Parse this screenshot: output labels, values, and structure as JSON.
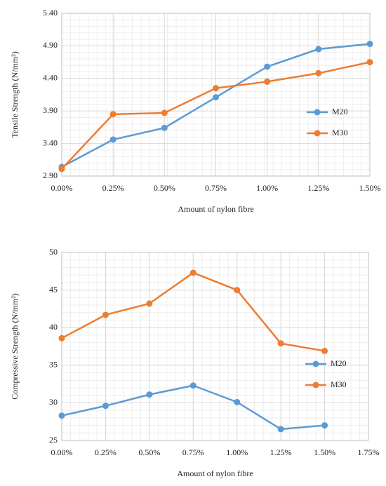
{
  "chart_data": [
    {
      "type": "line",
      "y_label": "Tensile Strength (N/mm²)",
      "x_label": "Amount of nylon fibre",
      "x": [
        0,
        0.25,
        0.5,
        0.75,
        1.0,
        1.25,
        1.5
      ],
      "xlim": [
        0,
        1.5
      ],
      "xticks": [
        {
          "value": 0,
          "label": "0.00%"
        },
        {
          "value": 0.25,
          "label": "0.25%"
        },
        {
          "value": 0.5,
          "label": "0.50%"
        },
        {
          "value": 0.75,
          "label": "0.75%"
        },
        {
          "value": 1.0,
          "label": "1.00%"
        },
        {
          "value": 1.25,
          "label": "1.25%"
        },
        {
          "value": 1.5,
          "label": "1.50%"
        }
      ],
      "ylim": [
        2.9,
        5.4
      ],
      "yticks": [
        {
          "value": 2.9,
          "label": "2.90"
        },
        {
          "value": 3.4,
          "label": "3.40"
        },
        {
          "value": 3.9,
          "label": "3.90"
        },
        {
          "value": 4.4,
          "label": "4.40"
        },
        {
          "value": 4.9,
          "label": "4.90"
        },
        {
          "value": 5.4,
          "label": "5.40"
        }
      ],
      "grid": true,
      "legend": "right",
      "series": [
        {
          "name": "M20",
          "color": "#5b9bd5",
          "values": [
            3.04,
            3.46,
            3.64,
            4.11,
            4.58,
            4.85,
            4.93
          ]
        },
        {
          "name": "M30",
          "color": "#ed7d31",
          "values": [
            3.01,
            3.85,
            3.87,
            4.25,
            4.35,
            4.48,
            4.65
          ]
        }
      ]
    },
    {
      "type": "line",
      "y_label": "Compressive Strength (N/mm²)",
      "x_label": "Amount of nylon fibre",
      "x": [
        0,
        0.25,
        0.5,
        0.75,
        1.0,
        1.25,
        1.5
      ],
      "xlim": [
        0,
        1.75
      ],
      "xticks": [
        {
          "value": 0,
          "label": "0.00%"
        },
        {
          "value": 0.25,
          "label": "0.25%"
        },
        {
          "value": 0.5,
          "label": "0.50%"
        },
        {
          "value": 0.75,
          "label": "0.75%"
        },
        {
          "value": 1.0,
          "label": "1.00%"
        },
        {
          "value": 1.25,
          "label": "1.25%"
        },
        {
          "value": 1.5,
          "label": "1.50%"
        },
        {
          "value": 1.75,
          "label": "1.75%"
        }
      ],
      "ylim": [
        25,
        50
      ],
      "yticks": [
        25,
        30,
        35,
        40,
        45,
        50
      ],
      "grid": true,
      "legend": "right",
      "series": [
        {
          "name": "M20",
          "color": "#5b9bd5",
          "values": [
            28.3,
            29.6,
            31.1,
            32.3,
            30.1,
            26.5,
            27.0
          ]
        },
        {
          "name": "M30",
          "color": "#ed7d31",
          "values": [
            38.6,
            41.7,
            43.2,
            47.3,
            45.0,
            37.9,
            36.9
          ]
        }
      ]
    }
  ]
}
